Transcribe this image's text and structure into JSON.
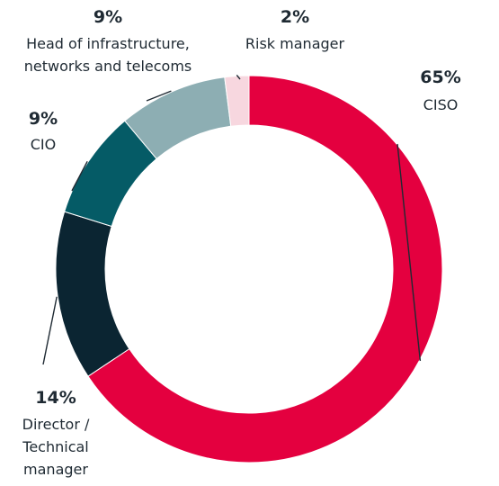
{
  "chart_data": {
    "type": "pie",
    "donut": true,
    "categories": [
      "CISO",
      "Director / Technical manager",
      "CIO",
      "Head of infrastructure, networks and telecoms",
      "Risk manager"
    ],
    "values": [
      65,
      14,
      9,
      9,
      2
    ],
    "percent_labels": [
      "65%",
      "14%",
      "9%",
      "9%",
      "2%"
    ],
    "label_lines": [
      [
        "CISO"
      ],
      [
        "Director /",
        "Technical",
        "manager"
      ],
      [
        "CIO"
      ],
      [
        "Head of infrastructure,",
        "networks and telecoms"
      ],
      [
        "Risk manager"
      ]
    ],
    "colors": [
      "#e4003f",
      "#0b2532",
      "#055b66",
      "#8daeb3",
      "#f7d7df"
    ],
    "start": "12 o'clock",
    "direction": "clockwise",
    "legend": "none"
  }
}
